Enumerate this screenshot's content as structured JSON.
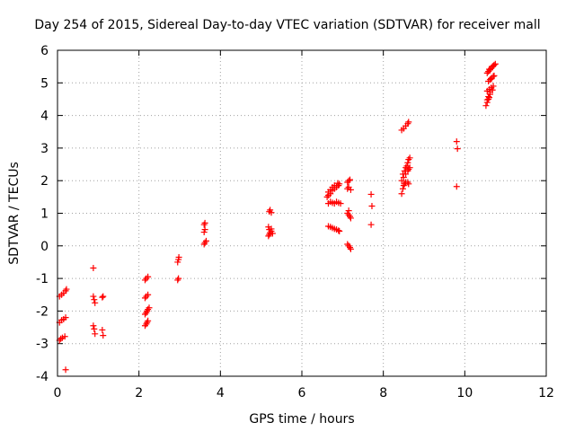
{
  "chart_data": {
    "type": "scatter",
    "title": "Day 254 of 2015, Sidereal Day-to-day VTEC variation (SDTVAR) for receiver mall",
    "xlabel": "GPS time / hours",
    "ylabel": "SDTVAR / TECUs",
    "xlim": [
      0,
      12
    ],
    "ylim": [
      -4,
      6
    ],
    "xticks": [
      "0",
      "2",
      "4",
      "6",
      "8",
      "10",
      "12"
    ],
    "yticks": [
      "-4",
      "-3",
      "-2",
      "-1",
      "0",
      "1",
      "2",
      "3",
      "4",
      "5",
      "6"
    ],
    "grid": true,
    "marker": "plus",
    "color": "#ff0000",
    "series": [
      {
        "name": "SDTVAR",
        "points": [
          [
            0.05,
            -2.9
          ],
          [
            0.08,
            -2.85
          ],
          [
            0.12,
            -2.82
          ],
          [
            0.18,
            -2.78
          ],
          [
            0.05,
            -2.35
          ],
          [
            0.1,
            -2.28
          ],
          [
            0.15,
            -2.25
          ],
          [
            0.2,
            -2.2
          ],
          [
            0.05,
            -1.55
          ],
          [
            0.1,
            -1.5
          ],
          [
            0.15,
            -1.45
          ],
          [
            0.2,
            -1.38
          ],
          [
            0.22,
            -1.33
          ],
          [
            0.2,
            -3.8
          ],
          [
            0.88,
            -0.68
          ],
          [
            0.88,
            -1.55
          ],
          [
            0.9,
            -1.65
          ],
          [
            0.92,
            -1.75
          ],
          [
            1.1,
            -1.58
          ],
          [
            1.12,
            -1.55
          ],
          [
            0.88,
            -2.45
          ],
          [
            0.9,
            -2.55
          ],
          [
            0.92,
            -2.7
          ],
          [
            1.1,
            -2.58
          ],
          [
            1.12,
            -2.75
          ],
          [
            2.15,
            -2.45
          ],
          [
            2.18,
            -2.4
          ],
          [
            2.2,
            -2.35
          ],
          [
            2.22,
            -2.3
          ],
          [
            2.15,
            -2.1
          ],
          [
            2.18,
            -2.05
          ],
          [
            2.2,
            -2.0
          ],
          [
            2.22,
            -1.95
          ],
          [
            2.25,
            -1.9
          ],
          [
            2.15,
            -1.6
          ],
          [
            2.18,
            -1.55
          ],
          [
            2.22,
            -1.5
          ],
          [
            2.15,
            -1.05
          ],
          [
            2.18,
            -1.0
          ],
          [
            2.22,
            -0.95
          ],
          [
            2.95,
            -1.05
          ],
          [
            2.97,
            -1.0
          ],
          [
            2.95,
            -0.5
          ],
          [
            2.97,
            -0.42
          ],
          [
            2.98,
            -0.35
          ],
          [
            3.6,
            0.05
          ],
          [
            3.62,
            0.1
          ],
          [
            3.65,
            0.15
          ],
          [
            3.6,
            0.42
          ],
          [
            3.62,
            0.5
          ],
          [
            3.6,
            0.65
          ],
          [
            3.62,
            0.7
          ],
          [
            5.18,
            0.3
          ],
          [
            5.2,
            0.35
          ],
          [
            5.22,
            0.4
          ],
          [
            5.25,
            0.45
          ],
          [
            5.2,
            0.5
          ],
          [
            5.18,
            0.58
          ],
          [
            5.25,
            0.52
          ],
          [
            5.28,
            0.38
          ],
          [
            5.2,
            1.05
          ],
          [
            5.22,
            1.1
          ],
          [
            5.25,
            1.02
          ],
          [
            6.62,
            1.5
          ],
          [
            6.65,
            1.55
          ],
          [
            6.7,
            1.6
          ],
          [
            6.75,
            1.7
          ],
          [
            6.8,
            1.75
          ],
          [
            6.85,
            1.8
          ],
          [
            6.9,
            1.85
          ],
          [
            6.92,
            1.9
          ],
          [
            6.65,
            1.65
          ],
          [
            6.7,
            1.72
          ],
          [
            6.75,
            1.8
          ],
          [
            6.8,
            1.85
          ],
          [
            6.88,
            1.92
          ],
          [
            6.65,
            1.3
          ],
          [
            6.7,
            1.35
          ],
          [
            6.75,
            1.32
          ],
          [
            6.8,
            1.3
          ],
          [
            6.85,
            1.35
          ],
          [
            6.9,
            1.32
          ],
          [
            6.95,
            1.3
          ],
          [
            6.65,
            0.6
          ],
          [
            6.7,
            0.58
          ],
          [
            6.75,
            0.55
          ],
          [
            6.8,
            0.52
          ],
          [
            6.85,
            0.5
          ],
          [
            6.9,
            0.47
          ],
          [
            6.92,
            0.45
          ],
          [
            7.12,
            1.95
          ],
          [
            7.15,
            2.0
          ],
          [
            7.18,
            2.03
          ],
          [
            7.12,
            1.75
          ],
          [
            7.15,
            1.8
          ],
          [
            7.2,
            1.72
          ],
          [
            7.12,
            1.0
          ],
          [
            7.15,
            0.95
          ],
          [
            7.18,
            0.9
          ],
          [
            7.2,
            0.85
          ],
          [
            7.15,
            1.08
          ],
          [
            7.12,
            0.05
          ],
          [
            7.15,
            0.0
          ],
          [
            7.18,
            -0.05
          ],
          [
            7.2,
            -0.1
          ],
          [
            7.7,
            1.58
          ],
          [
            7.72,
            1.22
          ],
          [
            7.7,
            0.65
          ],
          [
            8.45,
            1.6
          ],
          [
            8.48,
            1.75
          ],
          [
            8.5,
            1.85
          ],
          [
            8.52,
            1.9
          ],
          [
            8.55,
            1.95
          ],
          [
            8.6,
            1.95
          ],
          [
            8.62,
            1.9
          ],
          [
            8.45,
            2.0
          ],
          [
            8.5,
            2.1
          ],
          [
            8.55,
            2.2
          ],
          [
            8.6,
            2.3
          ],
          [
            8.62,
            2.35
          ],
          [
            8.65,
            2.4
          ],
          [
            8.48,
            2.2
          ],
          [
            8.52,
            2.3
          ],
          [
            8.55,
            2.4
          ],
          [
            8.58,
            2.45
          ],
          [
            8.6,
            2.55
          ],
          [
            8.62,
            2.65
          ],
          [
            8.65,
            2.7
          ],
          [
            8.45,
            3.55
          ],
          [
            8.5,
            3.6
          ],
          [
            8.55,
            3.68
          ],
          [
            8.6,
            3.75
          ],
          [
            8.62,
            3.8
          ],
          [
            9.8,
            3.2
          ],
          [
            9.82,
            2.98
          ],
          [
            9.8,
            1.82
          ],
          [
            10.52,
            4.3
          ],
          [
            10.55,
            4.4
          ],
          [
            10.58,
            4.5
          ],
          [
            10.6,
            4.55
          ],
          [
            10.62,
            4.65
          ],
          [
            10.58,
            4.58
          ],
          [
            10.55,
            4.48
          ],
          [
            10.55,
            4.75
          ],
          [
            10.6,
            4.8
          ],
          [
            10.65,
            4.85
          ],
          [
            10.7,
            4.9
          ],
          [
            10.68,
            4.78
          ],
          [
            10.62,
            4.72
          ],
          [
            10.58,
            5.05
          ],
          [
            10.62,
            5.1
          ],
          [
            10.66,
            5.15
          ],
          [
            10.7,
            5.2
          ],
          [
            10.72,
            5.22
          ],
          [
            10.65,
            5.12
          ],
          [
            10.55,
            5.3
          ],
          [
            10.58,
            5.35
          ],
          [
            10.62,
            5.4
          ],
          [
            10.65,
            5.45
          ],
          [
            10.68,
            5.5
          ],
          [
            10.72,
            5.55
          ],
          [
            10.75,
            5.58
          ],
          [
            10.6,
            5.42
          ],
          [
            10.7,
            5.52
          ]
        ]
      }
    ]
  }
}
